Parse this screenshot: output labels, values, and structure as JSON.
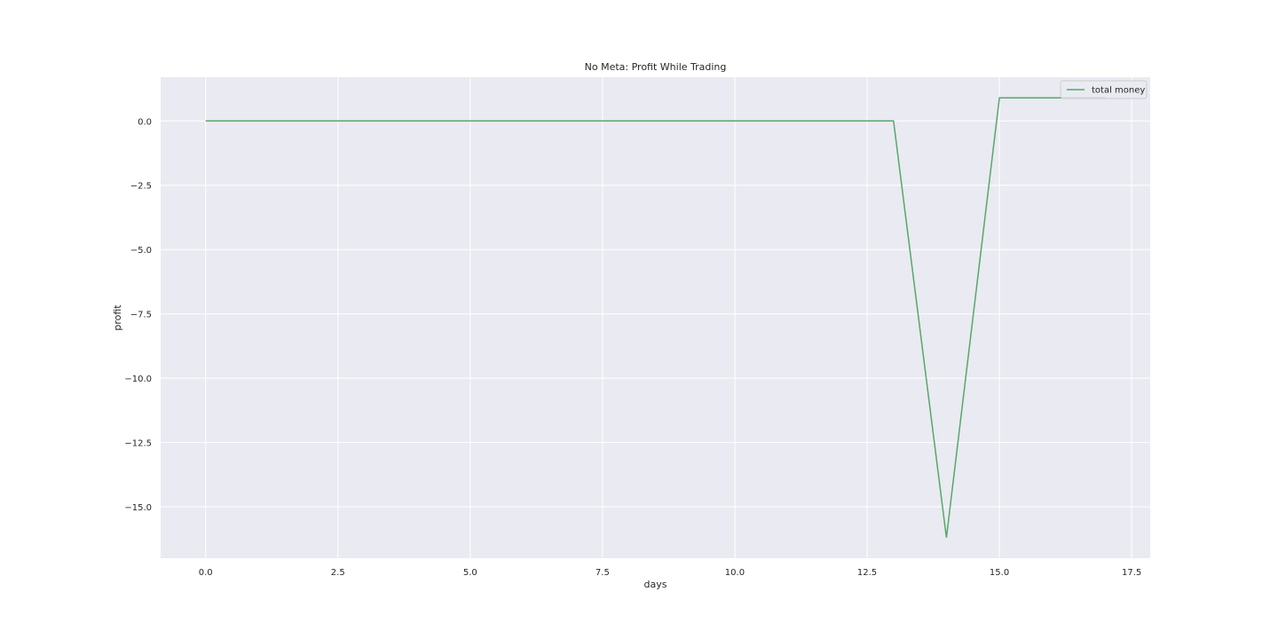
{
  "chart_data": {
    "type": "line",
    "title": "No Meta: Profit While Trading",
    "xlabel": "days",
    "ylabel": "profit",
    "xlim": [
      -0.85,
      17.85
    ],
    "ylim": [
      -17.0,
      1.7
    ],
    "xticks": [
      0.0,
      2.5,
      5.0,
      7.5,
      10.0,
      12.5,
      15.0,
      17.5
    ],
    "xtick_labels": [
      "0.0",
      "2.5",
      "5.0",
      "7.5",
      "10.0",
      "12.5",
      "15.0",
      "17.5"
    ],
    "yticks": [
      0.0,
      -2.5,
      -5.0,
      -7.5,
      -10.0,
      -12.5,
      -15.0
    ],
    "ytick_labels": [
      "0.0",
      "−2.5",
      "−5.0",
      "−7.5",
      "−10.0",
      "−12.5",
      "−15.0"
    ],
    "grid": true,
    "legend_position": "top-right",
    "series": [
      {
        "name": "total money",
        "color": "#55a868",
        "x": [
          0,
          1,
          2,
          3,
          4,
          5,
          6,
          7,
          8,
          9,
          10,
          11,
          12,
          13,
          14,
          15,
          16,
          17
        ],
        "y": [
          0,
          0,
          0,
          0,
          0,
          0,
          0,
          0,
          0,
          0,
          0,
          0,
          0,
          0,
          -16.2,
          0.9,
          0.9,
          0.9
        ]
      }
    ]
  },
  "colors": {
    "plot_background": "#eaeaf2",
    "grid": "#ffffff",
    "text": "#262626"
  }
}
